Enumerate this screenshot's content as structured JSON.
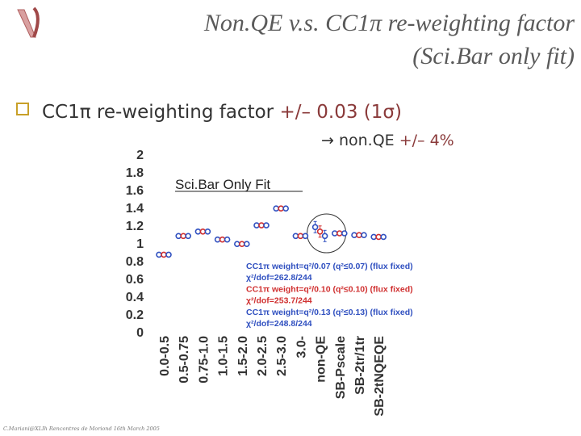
{
  "slide": {
    "title": "Non.QE v.s. CC1π re-weighting factor  (Sci.Bar only fit)",
    "bullet": {
      "text": "CC1π re-weighting factor ",
      "value": "+/– 0.03 (1σ)"
    },
    "subbullet": {
      "arrow": "→",
      "text": "non.QE ",
      "value": "+/– 4%"
    },
    "footer": "C.Mariani@XLIh Rencontres de Moriond 16th March 2005",
    "colors": {
      "title": "#5a5a5a",
      "accent": "#8a3a3a",
      "bullet": "#c8a028",
      "marker_blue": "#3050c0",
      "marker_red": "#d03030"
    }
  },
  "chart_data": {
    "type": "scatter",
    "title": "Sci.Bar Only Fit",
    "xlabel": "",
    "ylabel": "",
    "ylim": [
      0,
      2
    ],
    "yticks": [
      "2",
      "1.8",
      "1.6",
      "1.4",
      "1.2",
      "1",
      "0.8",
      "0.6",
      "0.4",
      "0.2",
      "0"
    ],
    "categories": [
      "0.0-0.5",
      "0.5-0.75",
      "0.75-1.0",
      "1.0-1.5",
      "1.5-2.0",
      "2.0-2.5",
      "2.5-3.0",
      "3.0-",
      "non-QE",
      "SB-Pscale",
      "SB-2tr/1tr",
      "SB-2tNQEQE"
    ],
    "grid": false,
    "legend_position": "bottom-right",
    "legend": [
      {
        "label": "CC1π weight=q²/0.07 (q²≤0.07) (flux fixed)",
        "color": "#3050c0"
      },
      {
        "label": "χ²/dof=262.8/244",
        "color": "#3050c0"
      },
      {
        "label": "CC1π weight=q²/0.10 (q²≤0.10) (flux fixed)",
        "color": "#d03030"
      },
      {
        "label": "χ²/dof=253.7/244",
        "color": "#d03030"
      },
      {
        "label": "CC1π weight=q²/0.13 (q²≤0.13) (flux fixed)",
        "color": "#3050c0"
      },
      {
        "label": "χ²/dof=248.8/244",
        "color": "#3050c0"
      }
    ],
    "series": [
      {
        "color": "#3050c0",
        "values": [
          0.86,
          1.07,
          1.12,
          1.03,
          0.98,
          1.19,
          1.38,
          1.07,
          1.17,
          1.1,
          1.08,
          1.06
        ]
      },
      {
        "color": "#d03030",
        "values": [
          0.86,
          1.07,
          1.12,
          1.03,
          0.98,
          1.19,
          1.38,
          1.07,
          1.12,
          1.1,
          1.08,
          1.06
        ]
      },
      {
        "color": "#3050c0",
        "values": [
          0.86,
          1.07,
          1.12,
          1.03,
          0.98,
          1.19,
          1.38,
          1.07,
          1.07,
          1.1,
          1.08,
          1.06
        ]
      }
    ],
    "highlight_category": "non-QE"
  }
}
